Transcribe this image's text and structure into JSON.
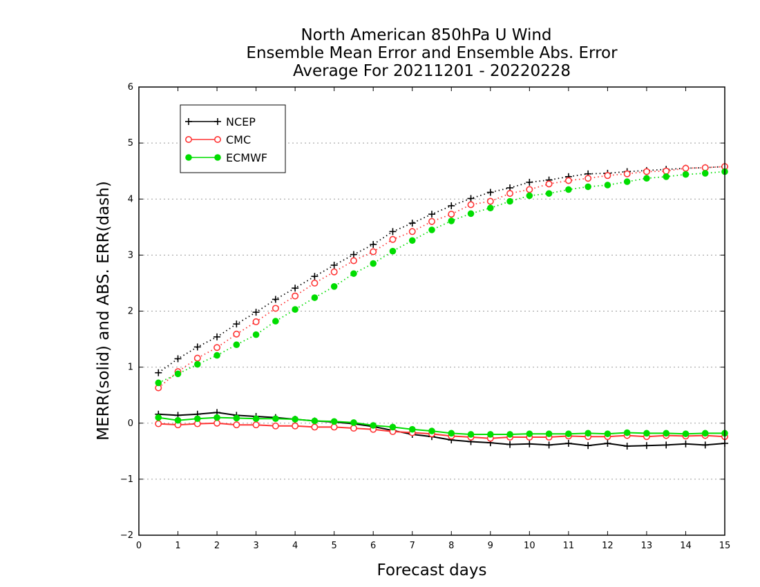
{
  "chart_data": {
    "type": "line",
    "title": [
      "North American 850hPa U Wind",
      "Ensemble Mean Error and Ensemble Abs. Error",
      "Average For 20211201 - 20220228"
    ],
    "xlabel": "Forecast days",
    "ylabel": "MERR(solid) and ABS. ERR(dash)",
    "xlim": [
      0,
      15
    ],
    "ylim": [
      -2,
      6
    ],
    "xticks": [
      "0",
      "1",
      "2",
      "3",
      "4",
      "5",
      "6",
      "7",
      "8",
      "9",
      "10",
      "11",
      "12",
      "13",
      "14",
      "15"
    ],
    "yticks": [
      "−2",
      "−1",
      "0",
      "1",
      "2",
      "3",
      "4",
      "5",
      "6"
    ],
    "grid": "horizontal dotted",
    "legend": "top-left",
    "x": [
      0.5,
      1,
      1.5,
      2,
      2.5,
      3,
      3.5,
      4,
      4.5,
      5,
      5.5,
      6,
      6.5,
      7,
      7.5,
      8,
      8.5,
      9,
      9.5,
      10,
      10.5,
      11,
      11.5,
      12,
      12.5,
      13,
      13.5,
      14,
      14.5,
      15
    ],
    "series": [
      {
        "name": "NCEP",
        "color": "#000000",
        "marker": "plus",
        "abs_err": [
          0.9,
          1.15,
          1.36,
          1.54,
          1.77,
          1.98,
          2.21,
          2.41,
          2.62,
          2.82,
          3.01,
          3.19,
          3.42,
          3.57,
          3.73,
          3.88,
          4.01,
          4.12,
          4.2,
          4.3,
          4.34,
          4.4,
          4.45,
          4.46,
          4.49,
          4.51,
          4.53,
          4.55,
          4.56,
          4.58
        ],
        "mean_err": [
          0.16,
          0.14,
          0.16,
          0.19,
          0.14,
          0.12,
          0.1,
          0.07,
          0.04,
          0.02,
          -0.01,
          -0.06,
          -0.13,
          -0.2,
          -0.24,
          -0.3,
          -0.33,
          -0.35,
          -0.38,
          -0.37,
          -0.39,
          -0.36,
          -0.4,
          -0.36,
          -0.41,
          -0.4,
          -0.39,
          -0.37,
          -0.39,
          -0.36
        ]
      },
      {
        "name": "CMC",
        "color": "#ff3333",
        "marker": "open-circle",
        "abs_err": [
          0.63,
          0.92,
          1.16,
          1.35,
          1.59,
          1.81,
          2.05,
          2.27,
          2.5,
          2.7,
          2.9,
          3.06,
          3.28,
          3.42,
          3.6,
          3.73,
          3.9,
          3.96,
          4.1,
          4.17,
          4.27,
          4.33,
          4.37,
          4.42,
          4.45,
          4.49,
          4.5,
          4.55,
          4.56,
          4.58
        ],
        "mean_err": [
          -0.01,
          -0.03,
          -0.01,
          0.0,
          -0.03,
          -0.03,
          -0.05,
          -0.05,
          -0.07,
          -0.07,
          -0.09,
          -0.11,
          -0.15,
          -0.17,
          -0.19,
          -0.23,
          -0.25,
          -0.27,
          -0.25,
          -0.25,
          -0.25,
          -0.23,
          -0.24,
          -0.24,
          -0.22,
          -0.24,
          -0.22,
          -0.23,
          -0.22,
          -0.24
        ]
      },
      {
        "name": "ECMWF",
        "color": "#00dd00",
        "marker": "filled-circle",
        "abs_err": [
          0.72,
          0.88,
          1.05,
          1.21,
          1.4,
          1.58,
          1.82,
          2.03,
          2.24,
          2.44,
          2.67,
          2.85,
          3.07,
          3.26,
          3.45,
          3.61,
          3.74,
          3.84,
          3.96,
          4.06,
          4.1,
          4.17,
          4.22,
          4.25,
          4.31,
          4.37,
          4.4,
          4.44,
          4.46,
          4.49
        ],
        "mean_err": [
          0.1,
          0.05,
          0.08,
          0.1,
          0.09,
          0.08,
          0.08,
          0.07,
          0.04,
          0.03,
          0.01,
          -0.04,
          -0.07,
          -0.11,
          -0.14,
          -0.18,
          -0.2,
          -0.2,
          -0.2,
          -0.19,
          -0.19,
          -0.19,
          -0.18,
          -0.19,
          -0.17,
          -0.18,
          -0.18,
          -0.19,
          -0.18,
          -0.18
        ]
      }
    ]
  }
}
